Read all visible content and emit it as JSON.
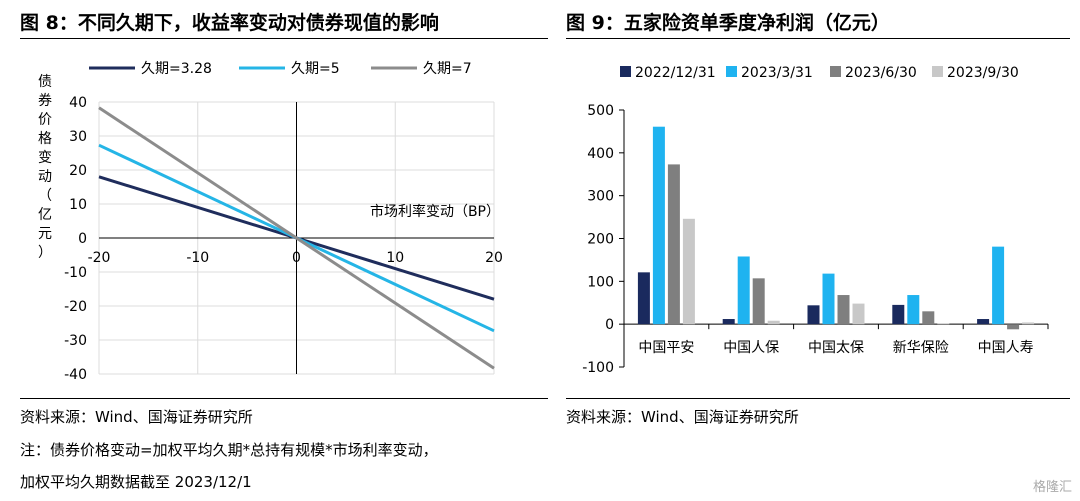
{
  "left": {
    "title": "图 8：不同久期下，收益率变动对债券现值的影响",
    "source": "资料来源：Wind、国海证券研究所",
    "notes": [
      "注：债券价格变动=加权平均久期*总持有规模*市场利率变动，",
      "加权平均久期数据截至 2023/12/1"
    ]
  },
  "right": {
    "title": "图 9：五家险资单季度净利润（亿元）",
    "source": "资料来源：Wind、国海证券研究所"
  },
  "watermark": "格隆汇",
  "chart_data": [
    {
      "type": "line",
      "xlabel": "市场利率变动（BP）",
      "ylabel": "债券价格变动（亿元）",
      "xlim": [
        -20,
        20
      ],
      "ylim": [
        -40,
        40
      ],
      "xticks": [
        -20,
        -10,
        0,
        10,
        20
      ],
      "yticks": [
        40,
        30,
        20,
        10,
        0,
        -10,
        -20,
        -30,
        -40
      ],
      "grid": true,
      "legend": "top",
      "series": [
        {
          "name": "久期=3.28",
          "color": "#1f2d5c",
          "x": [
            -20,
            20
          ],
          "y": [
            18,
            -18
          ]
        },
        {
          "name": "久期=5",
          "color": "#25b5e6",
          "x": [
            -20,
            20
          ],
          "y": [
            27.3,
            -27.3
          ]
        },
        {
          "name": "久期=7",
          "color": "#8c8c8c",
          "x": [
            -20,
            20
          ],
          "y": [
            38.3,
            -38.3
          ]
        }
      ]
    },
    {
      "type": "bar",
      "categories": [
        "中国平安",
        "中国人保",
        "中国太保",
        "新华保险",
        "中国人寿"
      ],
      "ylim": [
        -100,
        500
      ],
      "yticks": [
        500,
        400,
        300,
        200,
        100,
        0,
        -100
      ],
      "legend": "top",
      "series": [
        {
          "name": "2022/12/31",
          "color": "#1a2a5e",
          "values": [
            121,
            12,
            44,
            45,
            12
          ]
        },
        {
          "name": "2023/3/31",
          "color": "#1fb3f0",
          "values": [
            461,
            158,
            118,
            68,
            181
          ]
        },
        {
          "name": "2023/6/30",
          "color": "#7f7f7f",
          "values": [
            373,
            107,
            68,
            30,
            -12
          ]
        },
        {
          "name": "2023/9/30",
          "color": "#c8c8c8",
          "values": [
            246,
            8,
            48,
            2,
            4
          ]
        }
      ]
    }
  ]
}
